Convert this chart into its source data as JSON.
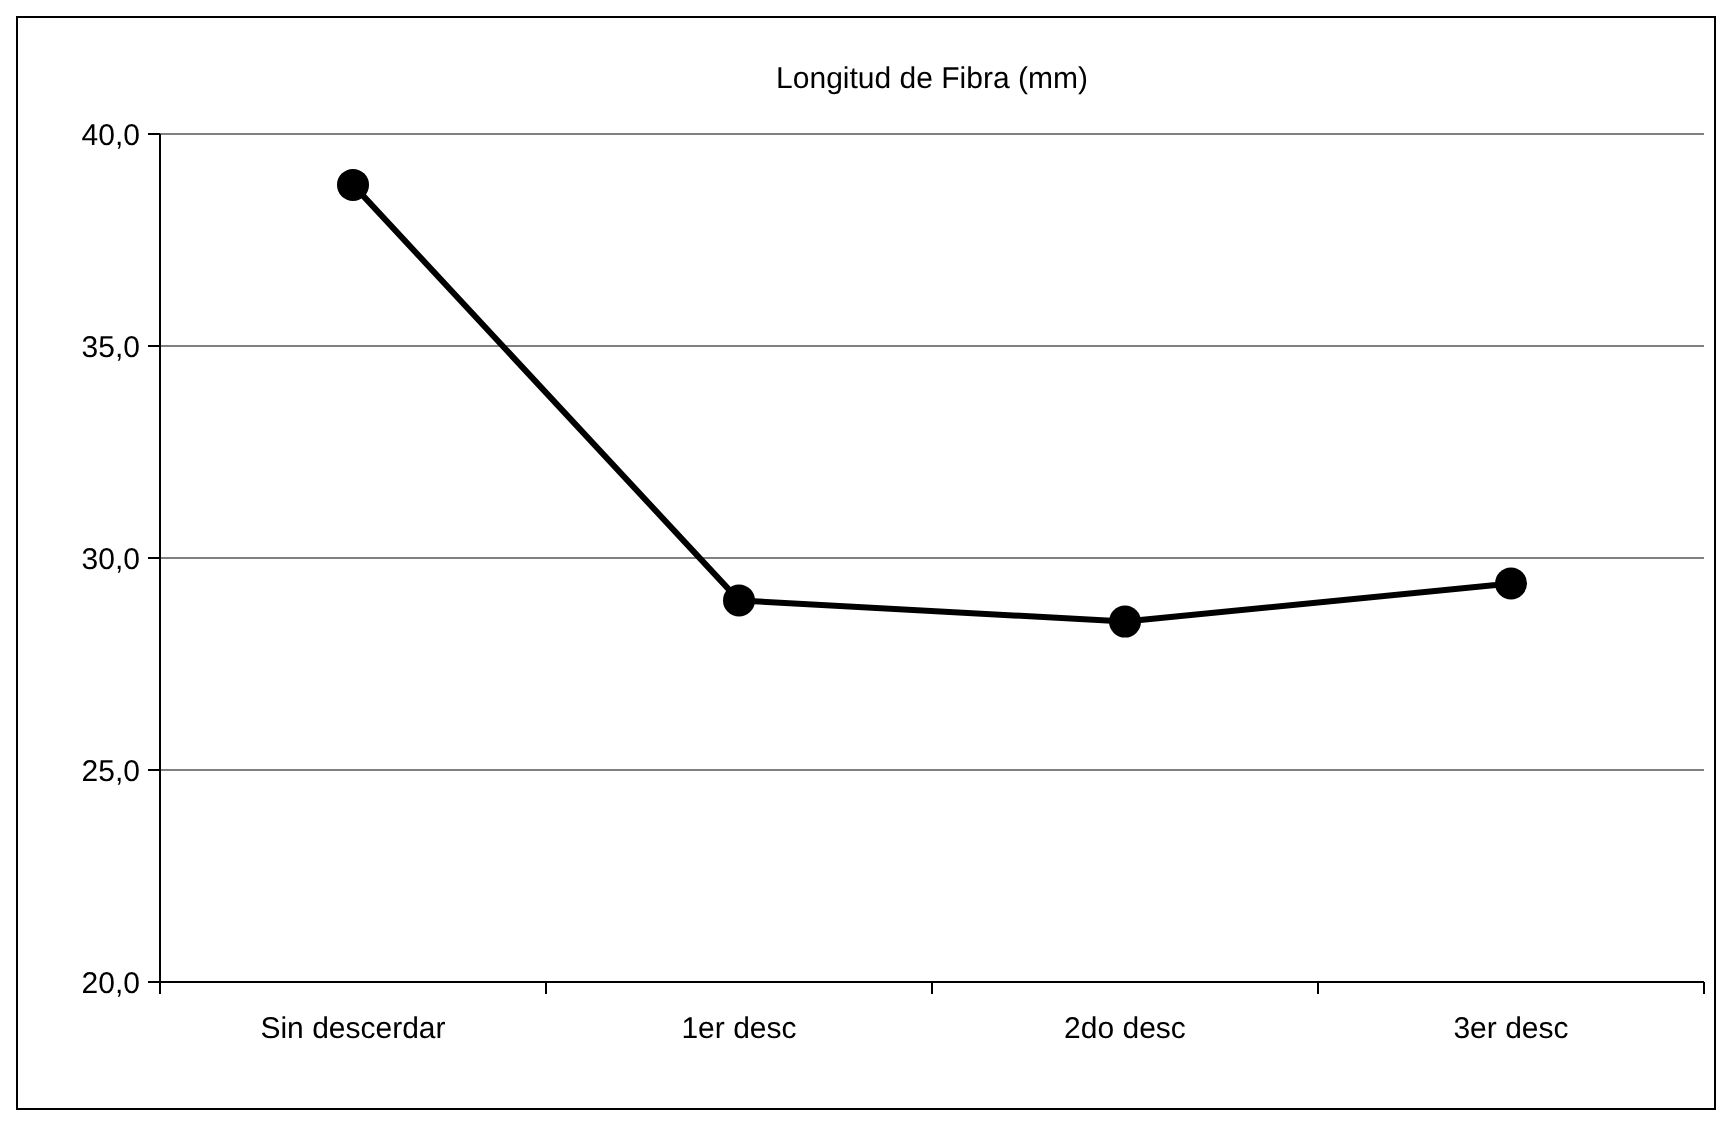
{
  "chart_data": {
    "type": "line",
    "title": "Longitud de Fibra (mm)",
    "categories": [
      "Sin descerdar",
      "1er desc",
      "2do desc",
      "3er desc"
    ],
    "series": [
      {
        "color": "#000000",
        "values": [
          38.8,
          29.0,
          28.5,
          29.4
        ]
      }
    ],
    "ylim": [
      20,
      40
    ],
    "yticks": [
      {
        "value": 20,
        "label": "20,0"
      },
      {
        "value": 25,
        "label": "25,0"
      },
      {
        "value": 30,
        "label": "30,0"
      },
      {
        "value": 35,
        "label": "35,0"
      },
      {
        "value": 40,
        "label": "40,0"
      }
    ],
    "grid": "y",
    "marker": "circle",
    "line_style": "solid"
  }
}
